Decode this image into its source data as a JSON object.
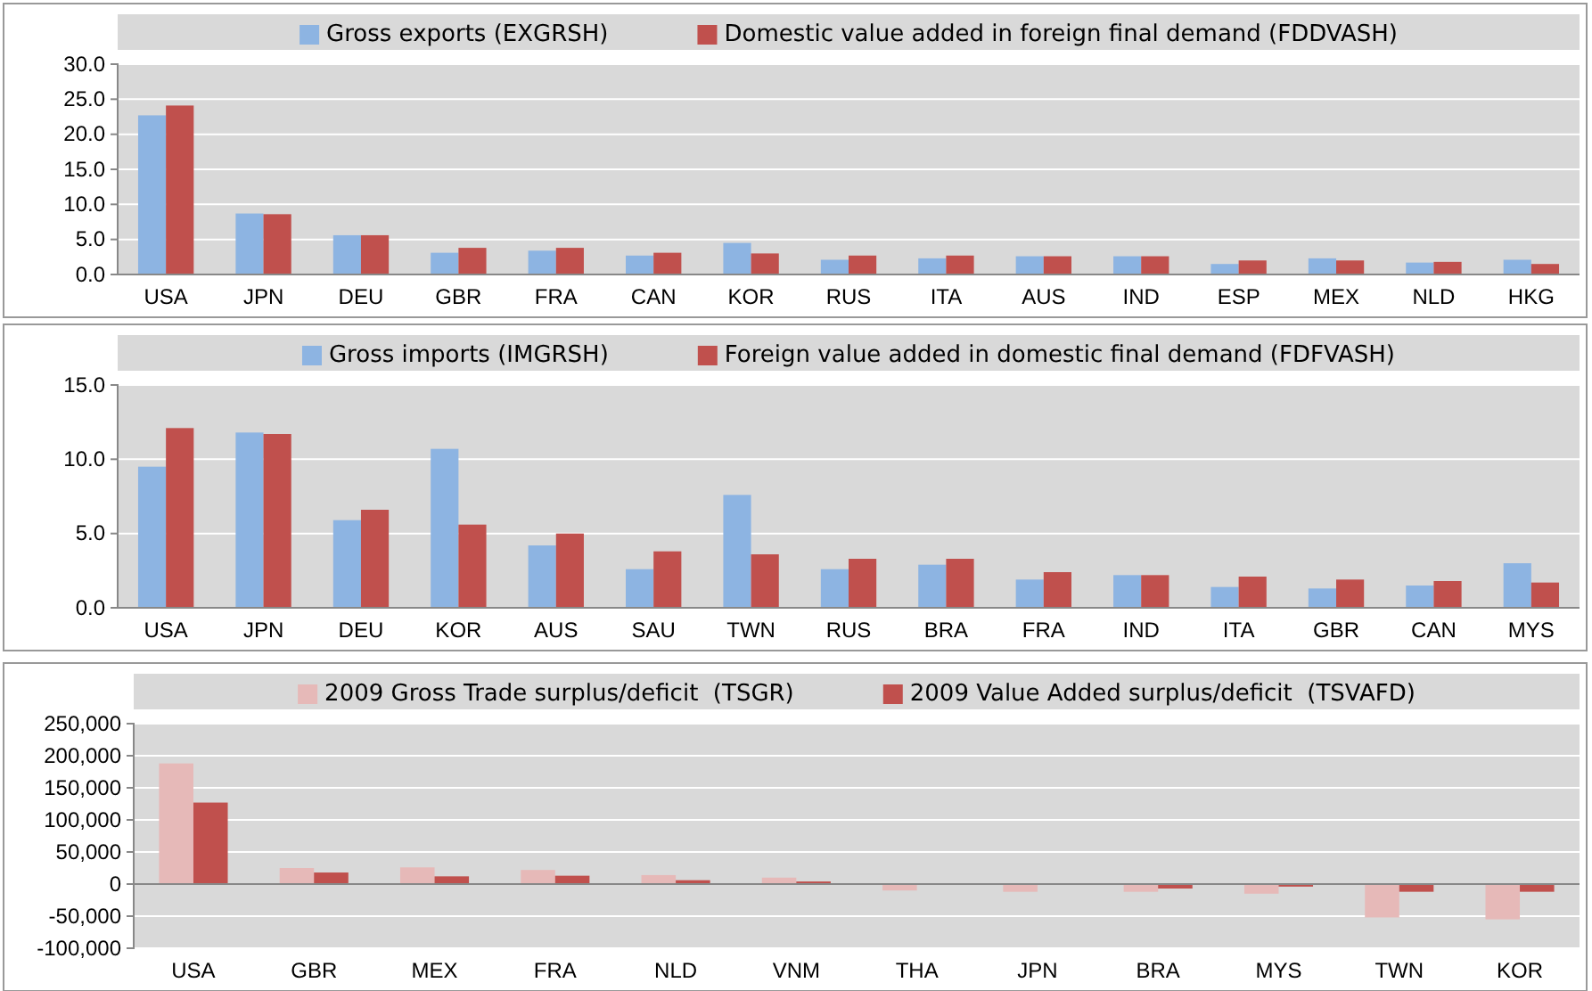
{
  "chart_data": [
    {
      "type": "bar",
      "categories": [
        "USA",
        "JPN",
        "DEU",
        "GBR",
        "FRA",
        "CAN",
        "KOR",
        "RUS",
        "ITA",
        "AUS",
        "IND",
        "ESP",
        "MEX",
        "NLD",
        "HKG"
      ],
      "series": [
        {
          "name": "Gross exports (EXGRSH)",
          "color": "#8db4e2",
          "values": [
            22.7,
            8.7,
            5.6,
            3.1,
            3.4,
            2.7,
            4.5,
            2.1,
            2.3,
            2.6,
            2.6,
            1.5,
            2.3,
            1.7,
            2.1
          ]
        },
        {
          "name": "Domestic value added in foreign final demand (FDDVASH)",
          "color": "#c0504d",
          "values": [
            24.1,
            8.6,
            5.6,
            3.8,
            3.8,
            3.1,
            3.0,
            2.7,
            2.7,
            2.6,
            2.6,
            2.0,
            2.0,
            1.8,
            1.5
          ]
        }
      ],
      "ylim": [
        0,
        30
      ],
      "yticks": [
        {
          "value": 0,
          "label": "0.0"
        },
        {
          "value": 5,
          "label": "5.0"
        },
        {
          "value": 10,
          "label": "10.0"
        },
        {
          "value": 15,
          "label": "15.0"
        },
        {
          "value": 20,
          "label": "20.0"
        },
        {
          "value": 25,
          "label": "25.0"
        },
        {
          "value": 30,
          "label": "30.0"
        }
      ],
      "grid": "y",
      "legend": "top"
    },
    {
      "type": "bar",
      "categories": [
        "USA",
        "JPN",
        "DEU",
        "KOR",
        "AUS",
        "SAU",
        "TWN",
        "RUS",
        "BRA",
        "FRA",
        "IND",
        "ITA",
        "GBR",
        "CAN",
        "MYS"
      ],
      "series": [
        {
          "name": "Gross imports (IMGRSH)",
          "color": "#8db4e2",
          "values": [
            9.5,
            11.8,
            5.9,
            10.7,
            4.2,
            2.6,
            7.6,
            2.6,
            2.9,
            1.9,
            2.2,
            1.4,
            1.3,
            1.5,
            3.0
          ]
        },
        {
          "name": "Foreign value added in domestic final demand (FDFVASH)",
          "color": "#c0504d",
          "values": [
            12.1,
            11.7,
            6.6,
            5.6,
            5.0,
            3.8,
            3.6,
            3.3,
            3.3,
            2.4,
            2.2,
            2.1,
            1.9,
            1.8,
            1.7
          ]
        }
      ],
      "ylim": [
        0,
        15
      ],
      "yticks": [
        {
          "value": 0,
          "label": "0.0"
        },
        {
          "value": 5,
          "label": "5.0"
        },
        {
          "value": 10,
          "label": "10.0"
        },
        {
          "value": 15,
          "label": "15.0"
        }
      ],
      "grid": "y",
      "legend": "top"
    },
    {
      "type": "bar",
      "categories": [
        "USA",
        "GBR",
        "MEX",
        "FRA",
        "NLD",
        "VNM",
        "THA",
        "JPN",
        "BRA",
        "MYS",
        "TWN",
        "KOR"
      ],
      "series": [
        {
          "name": "2009 Gross Trade surplus/deficit  (TSGR)",
          "color": "#e6b9b8",
          "values": [
            188000,
            25000,
            26000,
            22000,
            14000,
            10000,
            -10000,
            -12000,
            -12000,
            -15000,
            -52000,
            -55000
          ]
        },
        {
          "name": "2009 Value Added surplus/deficit  (TSVAFD)",
          "color": "#c0504d",
          "values": [
            127000,
            18000,
            12000,
            13000,
            6000,
            4000,
            -1000,
            -1000,
            -7000,
            -4000,
            -12000,
            -12000
          ]
        }
      ],
      "ylim": [
        -100000,
        250000
      ],
      "yticks": [
        {
          "value": -100000,
          "label": "-100,000"
        },
        {
          "value": -50000,
          "label": "-50,000"
        },
        {
          "value": 0,
          "label": "0"
        },
        {
          "value": 50000,
          "label": "50,000"
        },
        {
          "value": 100000,
          "label": "100,000"
        },
        {
          "value": 150000,
          "label": "150,000"
        },
        {
          "value": 200000,
          "label": "200,000"
        },
        {
          "value": 250000,
          "label": "250,000"
        }
      ],
      "grid": "y",
      "legend": "top"
    }
  ]
}
